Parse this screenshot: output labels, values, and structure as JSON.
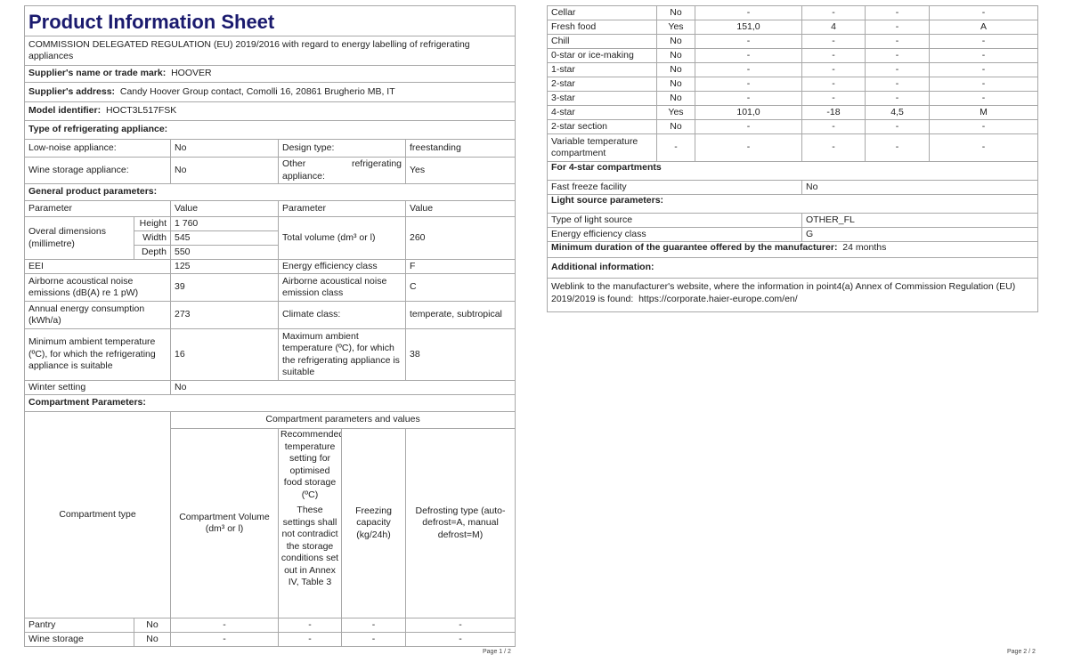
{
  "title": "Product Information Sheet",
  "regulation": "COMMISSION DELEGATED REGULATION (EU) 2019/2016 with regard to energy labelling of refrigerating appliances",
  "supplier": {
    "label": "Supplier's name or trade mark:",
    "value": "HOOVER"
  },
  "address": {
    "label": "Supplier's address:",
    "value": "Candy Hoover Group contact, Comolli 16, 20861 Brugherio MB, IT"
  },
  "model": {
    "label": "Model identifier:",
    "value": "HOCT3L517FSK"
  },
  "type_section": "Type of refrigerating appliance:",
  "type": {
    "low_noise_label": "Low-noise appliance:",
    "low_noise": "No",
    "design_label": "Design type:",
    "design": "freestanding",
    "wine_label": "Wine storage appliance:",
    "wine": "No",
    "other_label_1": "Other",
    "other_label_2": "refrigerating",
    "other_label_3": "appliance:",
    "other": "Yes"
  },
  "general_section": "General product parameters:",
  "general": {
    "h_param": "Parameter",
    "h_value": "Value",
    "dims_label": "Overal dimensions (millimetre)",
    "height_label": "Height",
    "height": "1 760",
    "width_label": "Width",
    "width": "545",
    "depth_label": "Depth",
    "depth": "550",
    "volume_label": "Total volume (dm³ or l)",
    "volume": "260",
    "eei_label": "EEI",
    "eei": "125",
    "eclass_label": "Energy efficiency class",
    "eclass": "F",
    "noise_label": "Airborne acoustical noise emissions (dB(A) re 1 pW)",
    "noise": "39",
    "noise_class_label": "Airborne acoustical noise emission class",
    "noise_class": "C",
    "annual_label": "Annual energy consumption (kWh/a)",
    "annual": "273",
    "climate_label": "Climate class:",
    "climate": "temperate, subtropical",
    "min_amb_label": "Minimum ambient temperature (ºC), for which the refrigerating appliance is suitable",
    "min_amb": "16",
    "max_amb_label": "Maximum ambient temperature (ºC), for which the refrigerating appliance is suitable",
    "max_amb": "38",
    "winter_label": "Winter setting",
    "winter": "No"
  },
  "compartment_section": "Compartment Parameters:",
  "compartment_header": {
    "group": "Compartment parameters and values",
    "type": "Compartment type",
    "volume": "Compartment Volume (dm³ or l)",
    "temp_1": "Recommended temperature setting for optimised food storage (ºC)",
    "temp_2": "These settings shall not contradict the storage conditions set out in Annex IV, Table 3",
    "freezing": "Freezing capacity (kg/24h)",
    "defrost": "Defrosting type (auto-defrost=A, manual defrost=M)"
  },
  "compartments_p1": [
    {
      "name": "Pantry",
      "present": "No",
      "volume": "-",
      "temp": "-",
      "freezing": "-",
      "defrost": "-"
    },
    {
      "name": "Wine storage",
      "present": "No",
      "volume": "-",
      "temp": "-",
      "freezing": "-",
      "defrost": "-"
    }
  ],
  "compartments_p2": [
    {
      "name": "Cellar",
      "present": "No",
      "volume": "-",
      "temp": "-",
      "freezing": "-",
      "defrost": "-"
    },
    {
      "name": "Fresh food",
      "present": "Yes",
      "volume": "151,0",
      "temp": "4",
      "freezing": "-",
      "defrost": "A"
    },
    {
      "name": "Chill",
      "present": "No",
      "volume": "-",
      "temp": "-",
      "freezing": "-",
      "defrost": "-"
    },
    {
      "name": "0-star or ice-making",
      "present": "No",
      "volume": "-",
      "temp": "-",
      "freezing": "-",
      "defrost": "-"
    },
    {
      "name": "1-star",
      "present": "No",
      "volume": "-",
      "temp": "-",
      "freezing": "-",
      "defrost": "-"
    },
    {
      "name": "2-star",
      "present": "No",
      "volume": "-",
      "temp": "-",
      "freezing": "-",
      "defrost": "-"
    },
    {
      "name": "3-star",
      "present": "No",
      "volume": "-",
      "temp": "-",
      "freezing": "-",
      "defrost": "-"
    },
    {
      "name": "4-star",
      "present": "Yes",
      "volume": "101,0",
      "temp": "-18",
      "freezing": "4,5",
      "defrost": "M"
    },
    {
      "name": "2-star section",
      "present": "No",
      "volume": "-",
      "temp": "-",
      "freezing": "-",
      "defrost": "-"
    },
    {
      "name": "Variable temperature compartment",
      "present": "-",
      "volume": "-",
      "temp": "-",
      "freezing": "-",
      "defrost": "-"
    }
  ],
  "four_star_section": "For 4-star compartments",
  "fast_freeze": {
    "label": "Fast freeze facility",
    "value": "No"
  },
  "light_section": "Light source parameters:",
  "light": {
    "type_label": "Type of light source",
    "type": "OTHER_FL",
    "class_label": "Energy efficiency class",
    "class": "G"
  },
  "guarantee": {
    "label": "Minimum duration of the guarantee offered by the manufacturer:",
    "value": "24 months"
  },
  "additional_section": "Additional information:",
  "weblink": {
    "text": "Weblink to the manufacturer's website, where the information in point4(a) Annex of Commission Regulation (EU) 2019/2019 is found:",
    "url": "https://corporate.haier-europe.com/en/"
  },
  "page1": "Page 1 / 2",
  "page2": "Page 2 / 2"
}
